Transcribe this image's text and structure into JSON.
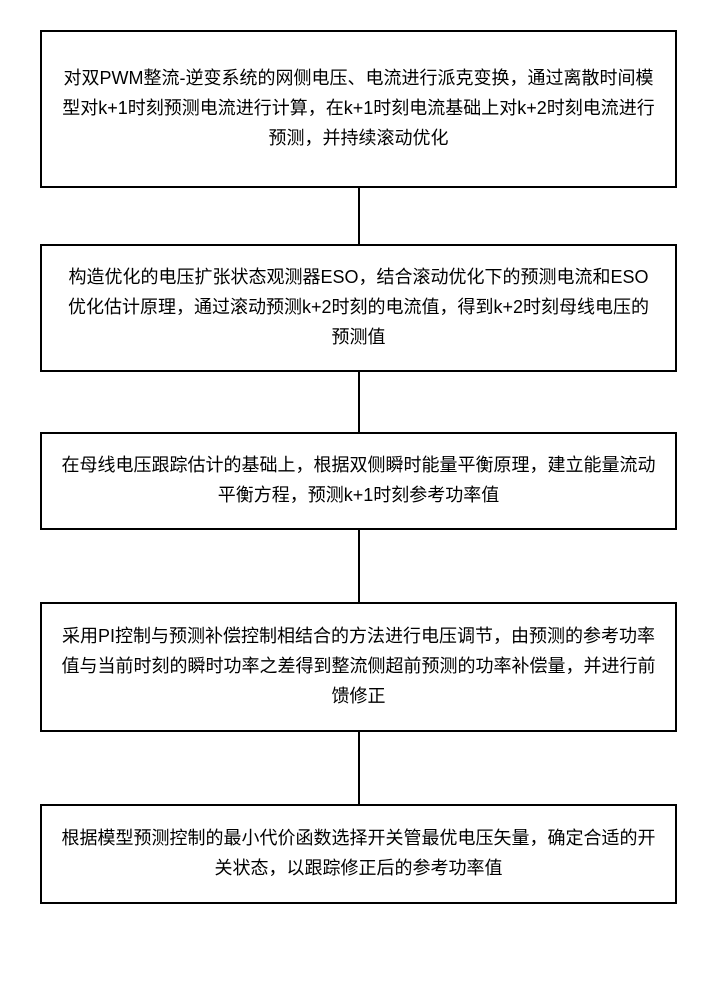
{
  "flowchart": {
    "type": "flowchart",
    "direction": "vertical",
    "background_color": "#ffffff",
    "box_border_color": "#000000",
    "box_border_width": 2,
    "box_background": "#ffffff",
    "text_color": "#000000",
    "font_size_pt": 18,
    "font_weight": "400",
    "line_height": 1.65,
    "connector_color": "#000000",
    "connector_width": 2,
    "connector_heights": [
      56,
      60,
      72,
      72
    ],
    "box_heights": [
      158,
      128,
      98,
      130,
      100
    ],
    "nodes": [
      {
        "id": "step1",
        "text": "对双PWM整流-逆变系统的网侧电压、电流进行派克变换，通过离散时间模型对k+1时刻预测电流进行计算，在k+1时刻电流基础上对k+2时刻电流进行预测，并持续滚动优化"
      },
      {
        "id": "step2",
        "text": "构造优化的电压扩张状态观测器ESO，结合滚动优化下的预测电流和ESO优化估计原理，通过滚动预测k+2时刻的电流值，得到k+2时刻母线电压的预测值"
      },
      {
        "id": "step3",
        "text": "在母线电压跟踪估计的基础上，根据双侧瞬时能量平衡原理，建立能量流动平衡方程，预测k+1时刻参考功率值"
      },
      {
        "id": "step4",
        "text": "采用PI控制与预测补偿控制相结合的方法进行电压调节，由预测的参考功率值与当前时刻的瞬时功率之差得到整流侧超前预测的功率补偿量，并进行前馈修正"
      },
      {
        "id": "step5",
        "text": "根据模型预测控制的最小代价函数选择开关管最优电压矢量，确定合适的开关状态，以跟踪修正后的参考功率值"
      }
    ],
    "edges": [
      {
        "from": "step1",
        "to": "step2"
      },
      {
        "from": "step2",
        "to": "step3"
      },
      {
        "from": "step3",
        "to": "step4"
      },
      {
        "from": "step4",
        "to": "step5"
      }
    ]
  }
}
